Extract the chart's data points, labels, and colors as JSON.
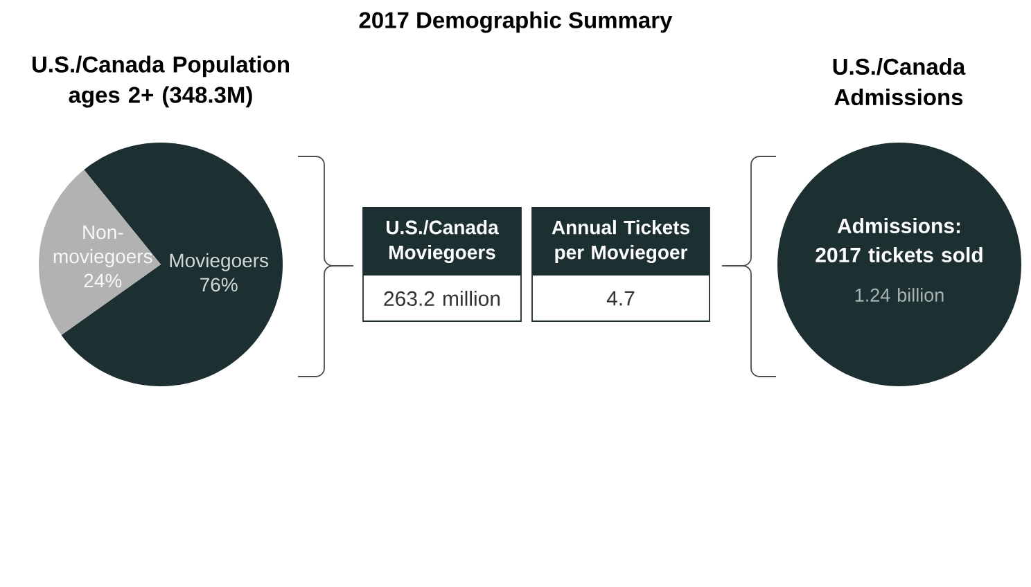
{
  "chart_data": [
    {
      "type": "other",
      "title": "2017 Demographic Summary"
    },
    {
      "type": "pie",
      "title": "U.S./Canada Population ages 2+ (348.3M)",
      "categories": [
        "Moviegoers",
        "Non-moviegoers"
      ],
      "values": [
        76,
        24
      ],
      "value_labels": [
        "76%",
        "24%"
      ],
      "colors": [
        "#1c2f31",
        "#b2b2b2"
      ]
    },
    {
      "type": "other",
      "title": "U.S./Canada Moviegoers",
      "annotations": [
        "263.2 million"
      ],
      "color": "#1c2f31"
    },
    {
      "type": "other",
      "title": "Annual Tickets per Moviegoer",
      "annotations": [
        "4.7"
      ],
      "color": "#1c2f31"
    },
    {
      "type": "other",
      "title": "U.S./Canada Admissions",
      "annotations": [
        "Admissions: 2017 tickets sold",
        "1.24 billion"
      ],
      "color": "#1c2f31"
    }
  ]
}
